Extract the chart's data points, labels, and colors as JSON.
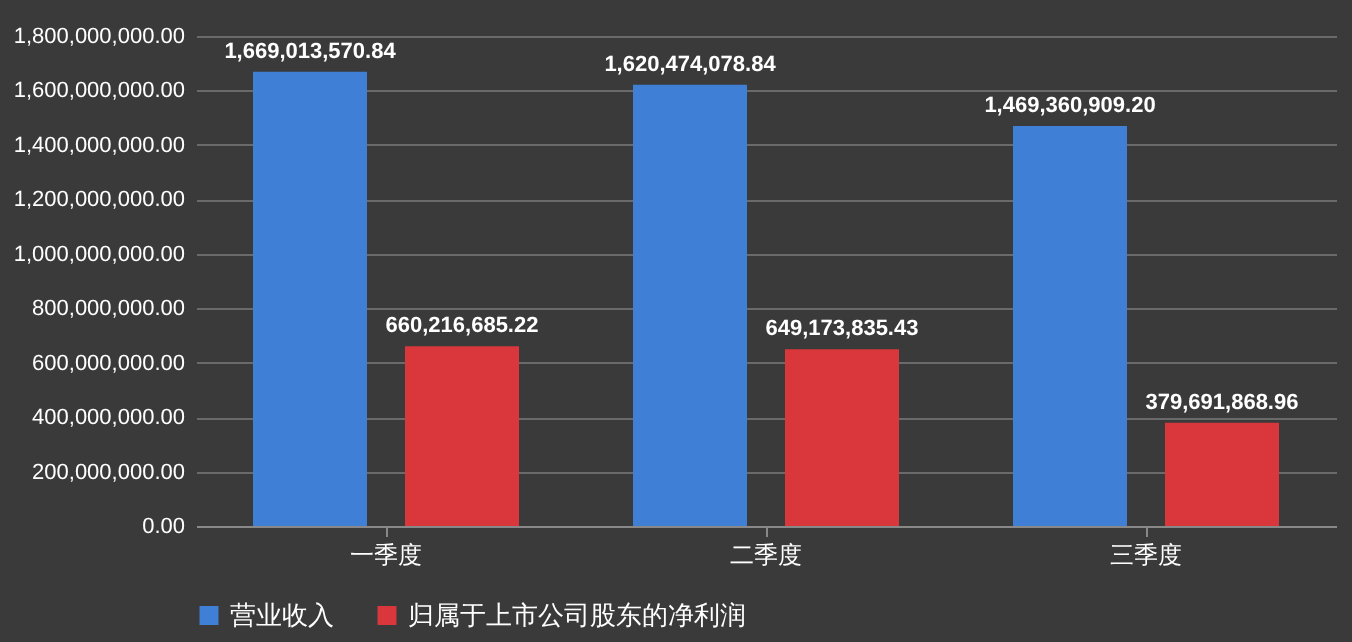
{
  "chart_data": {
    "type": "bar",
    "categories": [
      "一季度",
      "二季度",
      "三季度"
    ],
    "series": [
      {
        "name": "营业收入",
        "color": "#3f7fd6",
        "values": [
          1669013570.84,
          1620474078.84,
          1469360909.2
        ],
        "value_labels": [
          "1,669,013,570.84",
          "1,620,474,078.84",
          "1,469,360,909.20"
        ]
      },
      {
        "name": "归属于上市公司股东的净利润",
        "color": "#d9373c",
        "values": [
          660216685.22,
          649173835.43,
          379691868.96
        ],
        "value_labels": [
          "660,216,685.22",
          "649,173,835.43",
          "379,691,868.96"
        ]
      }
    ],
    "ylim": [
      0,
      1800000000
    ],
    "yticks": [
      {
        "value": 0,
        "label": "0.00"
      },
      {
        "value": 200000000,
        "label": "200,000,000.00"
      },
      {
        "value": 400000000,
        "label": "400,000,000.00"
      },
      {
        "value": 600000000,
        "label": "600,000,000.00"
      },
      {
        "value": 800000000,
        "label": "800,000,000.00"
      },
      {
        "value": 1000000000,
        "label": "1,000,000,000.00"
      },
      {
        "value": 1200000000,
        "label": "1,200,000,000.00"
      },
      {
        "value": 1400000000,
        "label": "1,400,000,000.00"
      },
      {
        "value": 1600000000,
        "label": "1,600,000,000.00"
      },
      {
        "value": 1800000000,
        "label": "1,800,000,000.00"
      }
    ],
    "grid": "y",
    "legend": "bottom"
  }
}
